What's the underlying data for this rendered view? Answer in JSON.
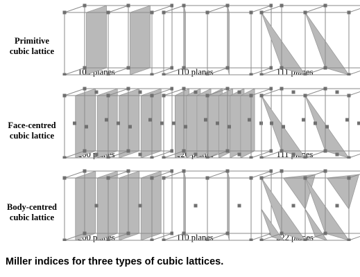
{
  "rows": [
    {
      "line1": "Primitive",
      "line2": "cubic lattice",
      "type": "primitive",
      "cells": [
        {
          "label": "100 planes",
          "planes": "100"
        },
        {
          "label": "110 planes",
          "planes": "110"
        },
        {
          "label": "111 planes",
          "planes": "111"
        }
      ]
    },
    {
      "line1": "Face-centred",
      "line2": "cubic lattice",
      "type": "fcc",
      "cells": [
        {
          "label": "200 planes",
          "planes": "200"
        },
        {
          "label": "220 planes",
          "planes": "220"
        },
        {
          "label": "111 planes",
          "planes": "111"
        }
      ]
    },
    {
      "line1": "Body-centred",
      "line2": "cubic lattice",
      "type": "bcc",
      "cells": [
        {
          "label": "200 planes",
          "planes": "200"
        },
        {
          "label": "110 planes",
          "planes": "110"
        },
        {
          "label": "222 planes",
          "planes": "222"
        }
      ]
    }
  ],
  "caption": "Miller indices for three types of cubic lattices.",
  "colors": {
    "plane_fill": "#b9b9b9",
    "edge": "#8a8a8a",
    "atom": "#707070"
  }
}
